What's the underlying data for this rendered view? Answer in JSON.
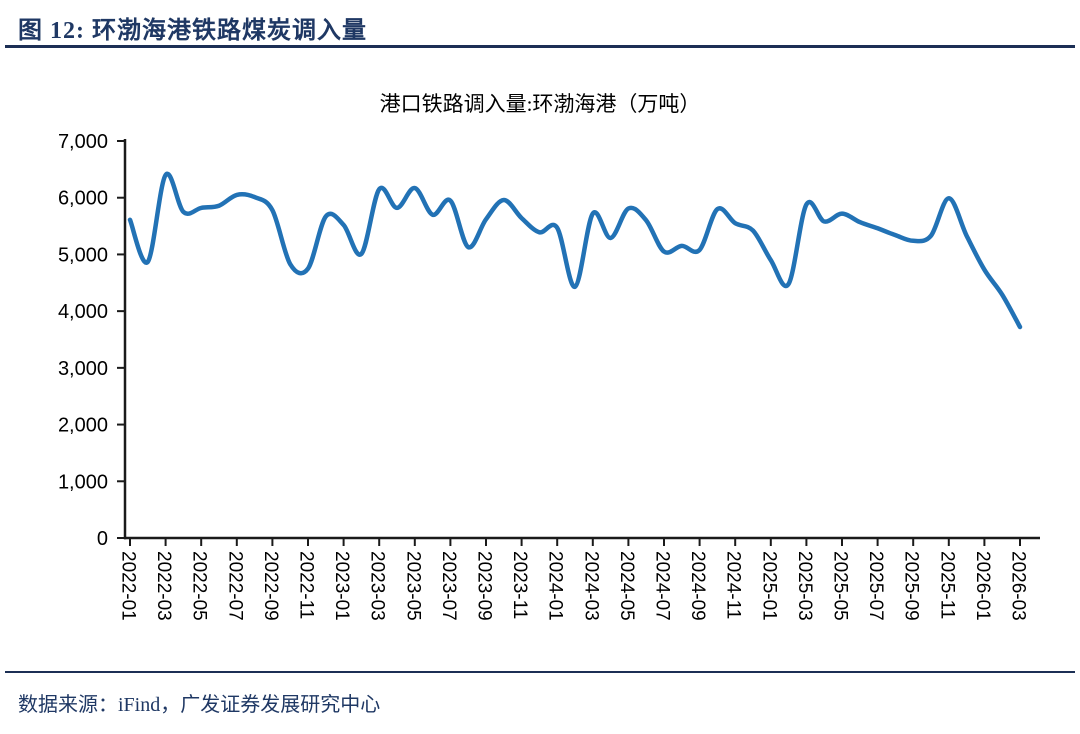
{
  "figure": {
    "title": "图 12: 环渤海港铁路煤炭调入量"
  },
  "footer": {
    "source": "数据来源：iFind，广发证券发展研究中心"
  },
  "colors": {
    "accent_navy": "#1F3864",
    "rule": "#1c2f55",
    "axis": "#1a1a1a",
    "line": "#2272B5"
  },
  "chart_data": {
    "type": "line",
    "title": "港口铁路调入量:环渤海港（万吨）",
    "series_name": "港口铁路调入量:环渤海港",
    "unit": "万吨",
    "grid": false,
    "legend_position": "none",
    "ylim": [
      0,
      7000
    ],
    "y_ticks": [
      0,
      1000,
      2000,
      3000,
      4000,
      5000,
      6000,
      7000
    ],
    "y_tick_labels": [
      "0",
      "1,000",
      "2,000",
      "3,000",
      "4,000",
      "5,000",
      "6,000",
      "7,000"
    ],
    "x_tick_labels": [
      "2022-01",
      "2022-03",
      "2022-05",
      "2022-07",
      "2022-09",
      "2022-11",
      "2023-01",
      "2023-03",
      "2023-05",
      "2023-07",
      "2023-09",
      "2023-11",
      "2024-01",
      "2024-03",
      "2024-05",
      "2024-07",
      "2024-09",
      "2024-11",
      "2025-01",
      "2025-03",
      "2025-05",
      "2025-07",
      "2025-09",
      "2025-11",
      "2026-01",
      "2026-03"
    ],
    "x": [
      "2022-01",
      "2022-02",
      "2022-03",
      "2022-04",
      "2022-05",
      "2022-06",
      "2022-07",
      "2022-08",
      "2022-09",
      "2022-10",
      "2022-11",
      "2022-12",
      "2023-01",
      "2023-02",
      "2023-03",
      "2023-04",
      "2023-05",
      "2023-06",
      "2023-07",
      "2023-08",
      "2023-09",
      "2023-10",
      "2023-11",
      "2023-12",
      "2024-01",
      "2024-02",
      "2024-03",
      "2024-04",
      "2024-05",
      "2024-06",
      "2024-07",
      "2024-08",
      "2024-09",
      "2024-10",
      "2024-11",
      "2024-12",
      "2025-01",
      "2025-02",
      "2025-03",
      "2025-04",
      "2025-05",
      "2025-06",
      "2025-07",
      "2025-08",
      "2025-09",
      "2025-10",
      "2025-11",
      "2025-12",
      "2026-01",
      "2026-02",
      "2026-03"
    ],
    "values": [
      5610,
      4870,
      6400,
      5750,
      5820,
      5860,
      6050,
      6010,
      5780,
      4830,
      4750,
      5670,
      5520,
      5010,
      6150,
      5820,
      6170,
      5700,
      5950,
      5130,
      5620,
      5960,
      5640,
      5390,
      5470,
      4430,
      5720,
      5290,
      5810,
      5600,
      5050,
      5150,
      5080,
      5800,
      5550,
      5420,
      4900,
      4480,
      5880,
      5580,
      5720,
      5570,
      5460,
      5340,
      5240,
      5330,
      5990,
      5330,
      4730,
      4290,
      3720
    ]
  }
}
